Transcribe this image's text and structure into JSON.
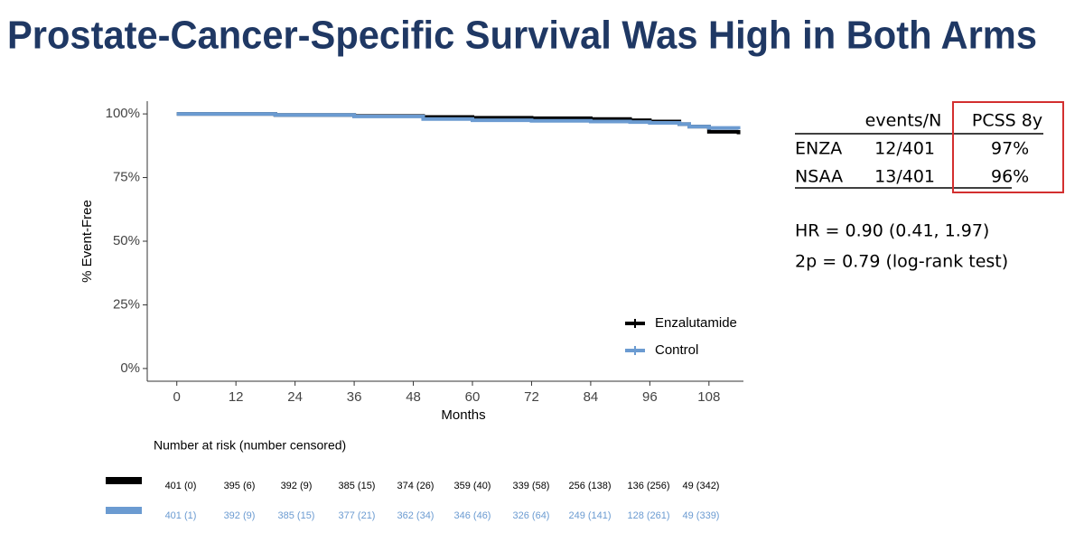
{
  "title": "Prostate-Cancer-Specific Survival Was High in Both Arms",
  "chart_data": {
    "type": "line",
    "step": true,
    "x_label": "Months",
    "y_label": "% Event-Free",
    "xlim": [
      -6,
      115
    ],
    "xticks": [
      0,
      12,
      24,
      36,
      48,
      60,
      72,
      84,
      96,
      108
    ],
    "ylim": [
      -5,
      105
    ],
    "yticks": [
      {
        "value": 0,
        "label": "0%"
      },
      {
        "value": 25,
        "label": "25%"
      },
      {
        "value": 50,
        "label": "50%"
      },
      {
        "value": 75,
        "label": "75%"
      },
      {
        "value": 100,
        "label": "100%"
      }
    ],
    "legend": "bottom-right",
    "series": [
      {
        "name": "Enzalutamide",
        "color": "#000000",
        "x": [
          0,
          20,
          36,
          50,
          60,
          72,
          84,
          92,
          96,
          102,
          104,
          108,
          114
        ],
        "values": [
          100,
          99.6,
          99.2,
          98.8,
          98.5,
          98.3,
          98,
          97.5,
          97,
          96,
          95,
          93,
          92
        ]
      },
      {
        "name": "Control",
        "color": "#6b9bd1",
        "x": [
          0,
          20,
          36,
          50,
          60,
          72,
          84,
          92,
          96,
          102,
          104,
          108,
          114
        ],
        "values": [
          100,
          99.6,
          99,
          98,
          97.5,
          97.3,
          97,
          96.8,
          96.5,
          96,
          95,
          94.5,
          94
        ]
      }
    ]
  },
  "summary_table": {
    "header": [
      "events/N",
      "PCSS 8y"
    ],
    "rows": [
      [
        "ENZA",
        "12/401",
        "97%"
      ],
      [
        "NSAA",
        "13/401",
        "96%"
      ]
    ]
  },
  "notes": [
    "HR = 0.90 (0.41, 1.97)",
    "2p = 0.79 (log-rank test)"
  ],
  "risk_table": {
    "title": "Number at risk (number censored)",
    "rows": [
      {
        "color": "#000000",
        "values": [
          "401 (0)",
          "395 (6)",
          "392 (9)",
          "385 (15)",
          "374 (26)",
          "359 (40)",
          "339 (58)",
          "256 (138)",
          "136 (256)",
          "49 (342)"
        ]
      },
      {
        "color": "#6b9bd1",
        "values": [
          "401 (1)",
          "392 (9)",
          "385 (15)",
          "377 (21)",
          "362 (34)",
          "346 (46)",
          "326 (64)",
          "249 (141)",
          "128 (261)",
          "49 (339)"
        ]
      }
    ]
  }
}
